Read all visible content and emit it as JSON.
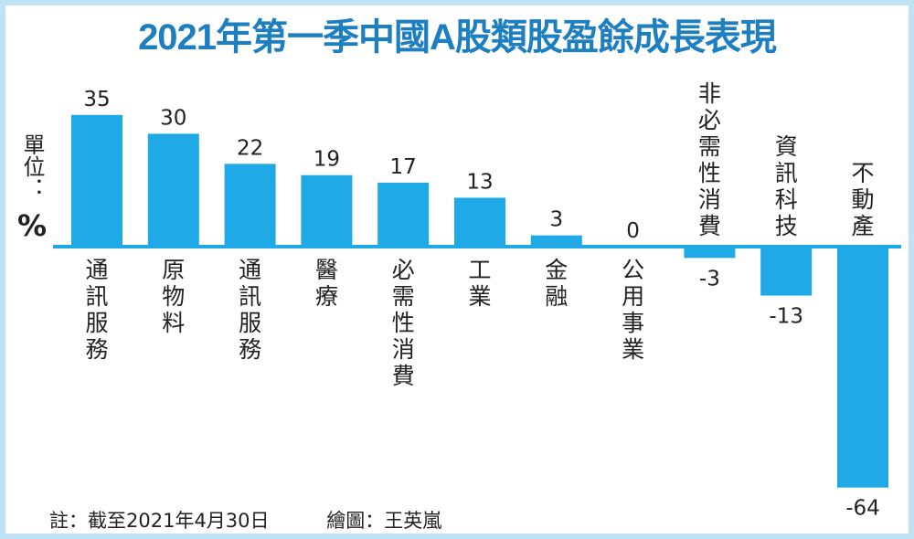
{
  "title": "2021年第一季中國A股類股盈餘成長表現",
  "unit_label": "單位：",
  "unit_symbol": "%",
  "note": "註：截至2021年4月30日",
  "credit": "繪圖：王英嵐",
  "colors": {
    "bar": "#1fa9e6",
    "axis": "#1fa9e6",
    "title": "#1e7fc0",
    "border": "#bfe3f5"
  },
  "chart_data": {
    "type": "bar",
    "title": "2021年第一季中國A股類股盈餘成長表現",
    "ylabel": "單位：%",
    "categories": [
      "通訊服務",
      "原物料",
      "通訊服務",
      "醫療",
      "必需性消費",
      "工業",
      "金融",
      "公用事業",
      "非必需性消費",
      "資訊科技",
      "不動產"
    ],
    "values": [
      35,
      30,
      22,
      19,
      17,
      13,
      3,
      0,
      -3,
      -13,
      -64
    ],
    "value_labels": [
      "35",
      "30",
      "22",
      "19",
      "17",
      "13",
      "3",
      "0",
      "-3",
      "-13",
      "-64"
    ],
    "ylim": [
      -64,
      35
    ],
    "grid": false,
    "legend": "none"
  }
}
